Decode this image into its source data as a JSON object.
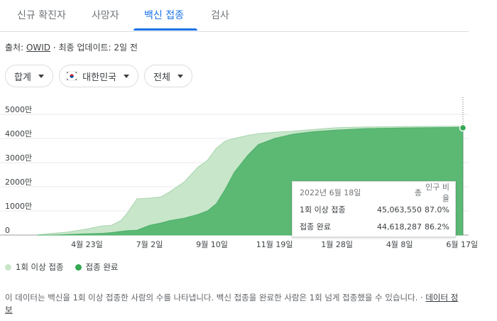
{
  "tabs": [
    {
      "label": "신규 확진자"
    },
    {
      "label": "사망자"
    },
    {
      "label": "백신 접종",
      "active": true
    },
    {
      "label": "검사"
    }
  ],
  "source": {
    "prefix": "출처: ",
    "link": "OWID",
    "suffix": " · 최종 업데이트: 2일 전"
  },
  "filters": {
    "aggregate": "합계",
    "country": "대한민국",
    "scope": "전체"
  },
  "chart_data": {
    "type": "area",
    "yticks": [
      "5000만",
      "4000만",
      "3000만",
      "2000만",
      "1000만",
      "0"
    ],
    "ylim": [
      0,
      50000000
    ],
    "xticks": [
      "4월 23일",
      "7월 2일",
      "9월 10일",
      "11월 19일",
      "1월 28일",
      "4월 8일",
      "6월 17일"
    ],
    "x": [
      "2021-02-26",
      "2021-03-15",
      "2021-04-01",
      "2021-04-23",
      "2021-05-10",
      "2021-05-20",
      "2021-05-31",
      "2021-06-07",
      "2021-06-18",
      "2021-07-02",
      "2021-07-15",
      "2021-07-25",
      "2021-08-10",
      "2021-08-25",
      "2021-09-05",
      "2021-09-15",
      "2021-09-25",
      "2021-10-05",
      "2021-10-20",
      "2021-11-01",
      "2021-11-19",
      "2021-12-10",
      "2022-01-01",
      "2022-01-28",
      "2022-03-01",
      "2022-04-08",
      "2022-05-15",
      "2022-06-18"
    ],
    "series": [
      {
        "name": "1회 이상 접종",
        "color": "#c8e6c9",
        "values": [
          0,
          700000,
          1200000,
          2500000,
          3800000,
          4000000,
          6000000,
          9000000,
          15000000,
          15300000,
          15800000,
          18000000,
          22000000,
          28000000,
          31000000,
          36000000,
          39000000,
          40000000,
          41300000,
          42000000,
          42600000,
          43000000,
          43700000,
          44500000,
          44800000,
          44950000,
          45000000,
          45063550
        ]
      },
      {
        "name": "접종 완료",
        "color": "#5bb974",
        "values": [
          0,
          0,
          200000,
          500000,
          700000,
          1000000,
          1500000,
          1800000,
          2000000,
          4000000,
          5000000,
          6000000,
          7000000,
          8500000,
          10000000,
          13000000,
          19000000,
          26000000,
          33000000,
          37500000,
          40000000,
          41800000,
          42800000,
          43500000,
          44100000,
          44350000,
          44500000,
          44618287
        ]
      }
    ]
  },
  "tooltip": {
    "date": "2022년 6월 18일",
    "col_total": "총",
    "col_ratio": "인구 비율",
    "row1_label": "1회 이상 접종",
    "row1_total": "45,063,550",
    "row1_ratio": "87.0%",
    "row2_label": "접종 완료",
    "row2_total": "44,618,287",
    "row2_ratio": "86.2%"
  },
  "legend": {
    "first": "1회 이상 접종",
    "second": "접종 완료"
  },
  "note": {
    "text": "이 데이터는 백신을 1회 이상 접종한 사람의 수를 나타냅니다. 백신 접종을 완료한 사람은 1회 넘게 접종했을 수 있습니다. · ",
    "link": "데이터 정보"
  }
}
